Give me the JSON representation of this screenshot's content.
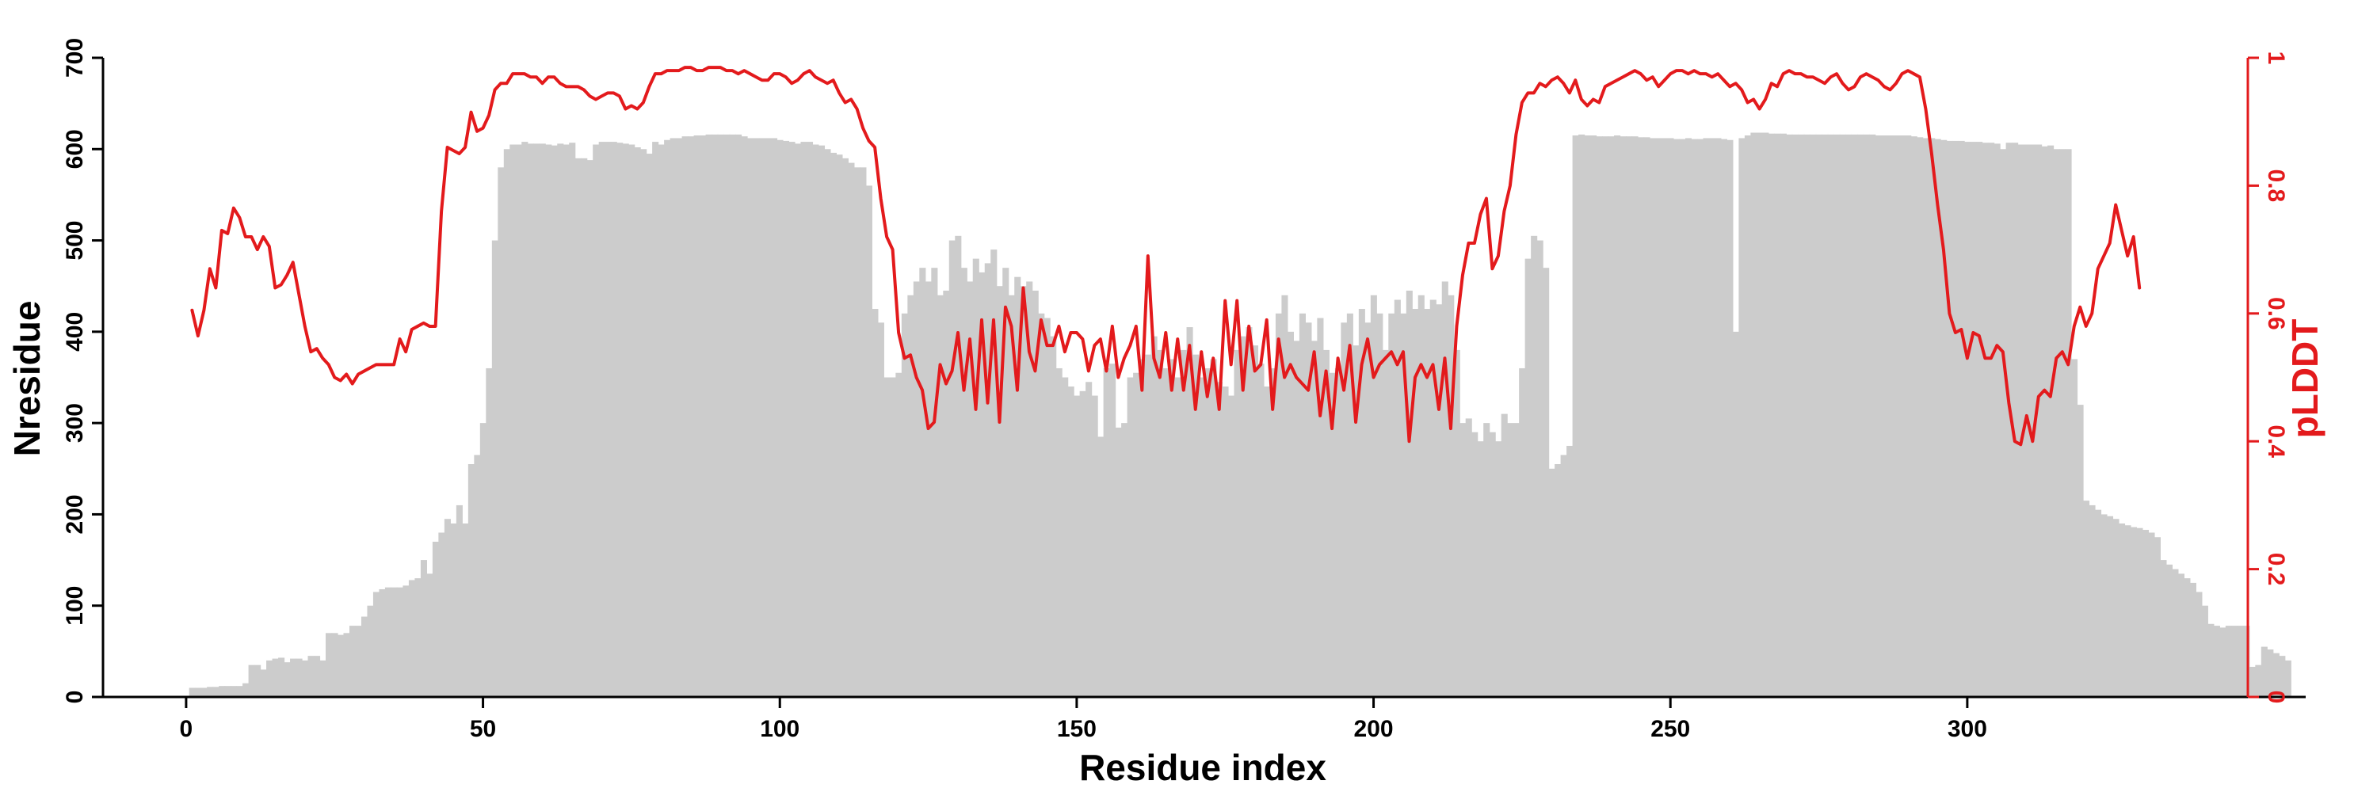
{
  "chart_data": {
    "type": "bar+line",
    "xlabel": "Residue index",
    "ylabel_left": "Nresidue",
    "ylabel_right": "pLDDT",
    "xlim": [
      -14,
      357
    ],
    "ylim_left": [
      0,
      700
    ],
    "ylim_right": [
      0,
      1
    ],
    "x_ticks": [
      0,
      50,
      100,
      150,
      200,
      250,
      300
    ],
    "y_left_ticks": [
      0,
      100,
      200,
      300,
      400,
      500,
      600,
      700
    ],
    "y_right_ticks": [
      0,
      0.2,
      0.4,
      0.6,
      0.8,
      1
    ],
    "grid": false,
    "legend": "none",
    "colors": {
      "bars": "#cccccc",
      "line": "#e31a1c",
      "axis_left": "#000000",
      "axis_right": "#e31a1c"
    },
    "series": [
      {
        "kind": "bar",
        "axis": "left",
        "x_start": 1,
        "values": [
          10,
          10,
          10,
          11,
          11,
          12,
          12,
          12,
          12,
          15,
          35,
          35,
          30,
          40,
          42,
          43,
          38,
          42,
          42,
          40,
          45,
          45,
          40,
          70,
          70,
          68,
          70,
          78,
          78,
          88,
          100,
          115,
          118,
          120,
          120,
          120,
          122,
          128,
          130,
          150,
          135,
          170,
          180,
          195,
          190,
          210,
          190,
          255,
          265,
          300,
          360,
          500,
          580,
          600,
          605,
          605,
          608,
          606,
          606,
          606,
          605,
          604,
          606,
          605,
          607,
          590,
          590,
          588,
          605,
          608,
          608,
          608,
          607,
          606,
          605,
          602,
          600,
          595,
          608,
          605,
          610,
          612,
          612,
          614,
          614,
          615,
          615,
          616,
          616,
          616,
          616,
          616,
          616,
          614,
          612,
          612,
          612,
          612,
          612,
          610,
          609,
          608,
          606,
          608,
          608,
          605,
          604,
          600,
          596,
          594,
          590,
          585,
          580,
          580,
          560,
          425,
          410,
          350,
          350,
          355,
          420,
          440,
          455,
          470,
          455,
          470,
          440,
          445,
          500,
          505,
          470,
          455,
          480,
          465,
          475,
          490,
          450,
          470,
          440,
          460,
          450,
          455,
          445,
          420,
          415,
          395,
          360,
          350,
          340,
          330,
          335,
          345,
          330,
          285,
          360,
          365,
          295,
          300,
          350,
          355,
          370,
          375,
          395,
          380,
          360,
          370,
          350,
          380,
          405,
          375,
          350,
          360,
          370,
          345,
          340,
          330,
          380,
          395,
          405,
          385,
          365,
          340,
          360,
          420,
          440,
          400,
          390,
          420,
          410,
          390,
          415,
          380,
          355,
          360,
          410,
          420,
          385,
          425,
          410,
          440,
          420,
          380,
          420,
          435,
          420,
          445,
          425,
          440,
          425,
          435,
          430,
          455,
          440,
          380,
          300,
          305,
          290,
          280,
          300,
          290,
          280,
          310,
          300,
          300,
          360,
          480,
          505,
          500,
          470,
          250,
          255,
          265,
          275,
          615,
          616,
          615,
          615,
          614,
          614,
          614,
          615,
          614,
          614,
          614,
          613,
          613,
          612,
          612,
          612,
          612,
          611,
          611,
          612,
          611,
          611,
          612,
          612,
          612,
          611,
          610,
          400,
          612,
          615,
          618,
          618,
          618,
          617,
          617,
          617,
          616,
          616,
          616,
          616,
          616,
          616,
          616,
          616,
          616,
          616,
          616,
          616,
          616,
          616,
          616,
          615,
          615,
          615,
          615,
          615,
          615,
          614,
          613,
          612,
          612,
          611,
          610,
          609,
          609,
          609,
          608,
          608,
          608,
          607,
          607,
          606,
          600,
          607,
          607,
          605,
          605,
          605,
          605,
          603,
          604,
          600,
          600,
          600,
          370,
          320,
          215,
          210,
          205,
          200,
          198,
          195,
          190,
          188,
          186,
          185,
          183,
          180,
          175,
          150,
          145,
          140,
          135,
          130,
          125,
          115,
          100,
          80,
          78,
          76,
          78,
          78,
          78,
          78,
          33,
          35,
          55,
          52,
          48,
          45,
          40
        ]
      },
      {
        "kind": "line",
        "axis": "right",
        "x_start": 1,
        "values": [
          0.605,
          0.565,
          0.605,
          0.67,
          0.64,
          0.73,
          0.725,
          0.765,
          0.75,
          0.72,
          0.72,
          0.7,
          0.72,
          0.705,
          0.64,
          0.645,
          0.66,
          0.68,
          0.63,
          0.58,
          0.54,
          0.545,
          0.53,
          0.52,
          0.5,
          0.495,
          0.505,
          0.49,
          0.505,
          0.51,
          0.515,
          0.52,
          0.52,
          0.52,
          0.52,
          0.56,
          0.54,
          0.575,
          0.58,
          0.585,
          0.58,
          0.58,
          0.76,
          0.86,
          0.855,
          0.85,
          0.86,
          0.915,
          0.885,
          0.89,
          0.91,
          0.95,
          0.96,
          0.96,
          0.975,
          0.975,
          0.975,
          0.97,
          0.97,
          0.96,
          0.97,
          0.97,
          0.96,
          0.955,
          0.955,
          0.955,
          0.95,
          0.94,
          0.935,
          0.94,
          0.945,
          0.945,
          0.94,
          0.92,
          0.925,
          0.92,
          0.93,
          0.955,
          0.975,
          0.975,
          0.98,
          0.98,
          0.98,
          0.985,
          0.985,
          0.98,
          0.98,
          0.985,
          0.985,
          0.985,
          0.98,
          0.98,
          0.975,
          0.98,
          0.975,
          0.97,
          0.965,
          0.965,
          0.975,
          0.975,
          0.97,
          0.96,
          0.965,
          0.975,
          0.98,
          0.97,
          0.965,
          0.96,
          0.965,
          0.945,
          0.93,
          0.935,
          0.92,
          0.89,
          0.87,
          0.86,
          0.78,
          0.72,
          0.7,
          0.57,
          0.53,
          0.535,
          0.5,
          0.48,
          0.42,
          0.43,
          0.52,
          0.49,
          0.51,
          0.57,
          0.48,
          0.56,
          0.45,
          0.59,
          0.46,
          0.59,
          0.43,
          0.61,
          0.58,
          0.48,
          0.64,
          0.54,
          0.51,
          0.59,
          0.55,
          0.55,
          0.58,
          0.54,
          0.57,
          0.57,
          0.56,
          0.51,
          0.55,
          0.56,
          0.51,
          0.58,
          0.5,
          0.53,
          0.55,
          0.58,
          0.48,
          0.69,
          0.53,
          0.5,
          0.57,
          0.48,
          0.56,
          0.48,
          0.55,
          0.45,
          0.54,
          0.47,
          0.53,
          0.45,
          0.62,
          0.52,
          0.62,
          0.48,
          0.58,
          0.51,
          0.52,
          0.59,
          0.45,
          0.56,
          0.5,
          0.52,
          0.5,
          0.49,
          0.48,
          0.54,
          0.44,
          0.51,
          0.42,
          0.53,
          0.48,
          0.55,
          0.43,
          0.52,
          0.56,
          0.5,
          0.52,
          0.53,
          0.54,
          0.52,
          0.54,
          0.4,
          0.5,
          0.52,
          0.5,
          0.52,
          0.45,
          0.53,
          0.42,
          0.58,
          0.66,
          0.71,
          0.71,
          0.755,
          0.78,
          0.67,
          0.69,
          0.76,
          0.8,
          0.88,
          0.93,
          0.945,
          0.945,
          0.96,
          0.955,
          0.965,
          0.97,
          0.96,
          0.945,
          0.965,
          0.935,
          0.925,
          0.935,
          0.93,
          0.955,
          0.96,
          0.965,
          0.97,
          0.975,
          0.98,
          0.975,
          0.965,
          0.97,
          0.955,
          0.965,
          0.975,
          0.98,
          0.98,
          0.975,
          0.98,
          0.975,
          0.975,
          0.97,
          0.975,
          0.965,
          0.955,
          0.96,
          0.95,
          0.93,
          0.935,
          0.92,
          0.935,
          0.96,
          0.955,
          0.975,
          0.98,
          0.975,
          0.975,
          0.97,
          0.97,
          0.965,
          0.96,
          0.97,
          0.975,
          0.96,
          0.95,
          0.955,
          0.97,
          0.975,
          0.97,
          0.965,
          0.955,
          0.95,
          0.96,
          0.975,
          0.98,
          0.975,
          0.97,
          0.92,
          0.85,
          0.77,
          0.7,
          0.6,
          0.57,
          0.575,
          0.53,
          0.57,
          0.565,
          0.53,
          0.53,
          0.55,
          0.54,
          0.46,
          0.4,
          0.395,
          0.44,
          0.4,
          0.47,
          0.48,
          0.47,
          0.53,
          0.54,
          0.52,
          0.58,
          0.61,
          0.58,
          0.6,
          0.67,
          0.69,
          0.71,
          0.77,
          0.73,
          0.69,
          0.72,
          0.64
        ]
      }
    ]
  }
}
